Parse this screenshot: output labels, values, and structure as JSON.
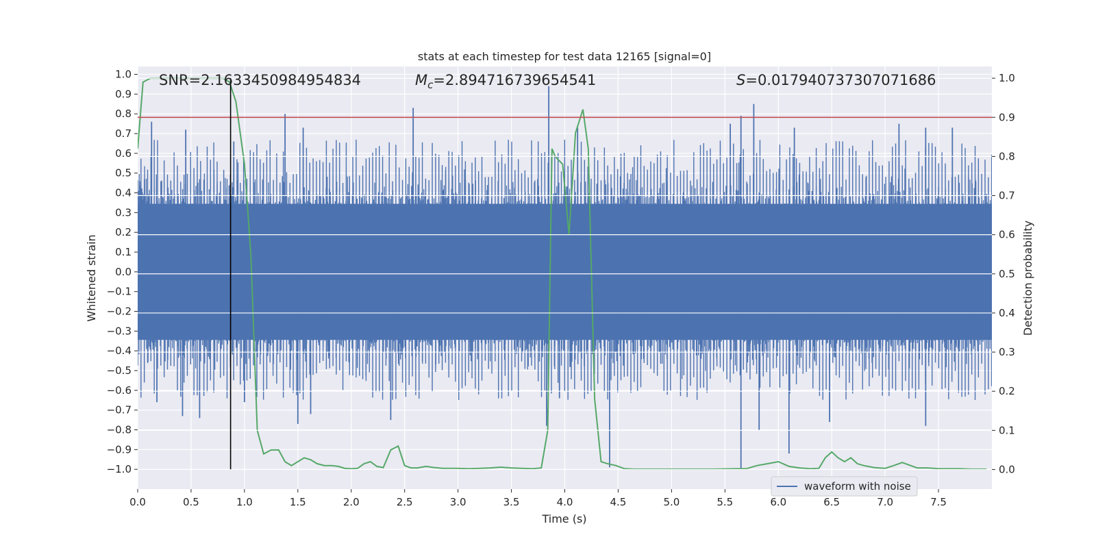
{
  "chart_data": {
    "type": "line",
    "title": "stats at each timestep for test data 12165 [signal=0]",
    "xlabel": "Time (s)",
    "ylabel": "Whitened strain",
    "y2label": "Detection probability",
    "xlim": [
      0.0,
      8.0
    ],
    "ylim": [
      -1.1,
      1.04
    ],
    "y2lim": [
      -0.05,
      1.03
    ],
    "x_ticks": [
      "0.0",
      "0.5",
      "1.0",
      "1.5",
      "2.0",
      "2.5",
      "3.0",
      "3.5",
      "4.0",
      "4.5",
      "5.0",
      "5.5",
      "6.0",
      "6.5",
      "7.0",
      "7.5"
    ],
    "y_ticks": [
      "1.0",
      "0.9",
      "0.8",
      "0.7",
      "0.6",
      "0.5",
      "0.4",
      "0.3",
      "0.2",
      "0.1",
      "0.0",
      "-0.1",
      "-0.2",
      "-0.3",
      "-0.4",
      "-0.5",
      "-0.6",
      "-0.7",
      "-0.8",
      "-0.9",
      "-1.0"
    ],
    "y2_ticks": [
      "1.0",
      "0.9",
      "0.8",
      "0.7",
      "0.6",
      "0.5",
      "0.4",
      "0.3",
      "0.2",
      "0.1",
      "0.0"
    ],
    "annotations": {
      "snr": "SNR=2.1633450984954834",
      "mc_symbol": "M",
      "mc_subscript": "c",
      "mc_value": "=2.894716739654541",
      "s_symbol": "S",
      "s_value": "=0.017940737307071686"
    },
    "threshold": {
      "value": 0.9,
      "axis": "right",
      "color": "#c44e52"
    },
    "vertical_marker": {
      "x": 0.87,
      "color": "#000000"
    },
    "legend": {
      "label": "waveform with noise",
      "location": "lower-right"
    },
    "series": [
      {
        "name": "waveform with noise",
        "axis": "left",
        "color": "#4c72b0",
        "description": "whitened strain noise, core band approx +/-0.42 with spikes",
        "core_envelope": 0.42,
        "spikes": [
          {
            "x": 0.13,
            "y": 0.76
          },
          {
            "x": 0.45,
            "y": 0.72
          },
          {
            "x": 0.9,
            "y": 0.66
          },
          {
            "x": 1.38,
            "y": 0.8
          },
          {
            "x": 1.55,
            "y": 0.73
          },
          {
            "x": 2.58,
            "y": 0.83
          },
          {
            "x": 3.85,
            "y": 0.94
          },
          {
            "x": 4.12,
            "y": 0.73
          },
          {
            "x": 5.55,
            "y": 0.75
          },
          {
            "x": 5.65,
            "y": 0.79
          },
          {
            "x": 5.77,
            "y": 0.85
          },
          {
            "x": 6.15,
            "y": 0.73
          },
          {
            "x": 7.13,
            "y": 0.75
          },
          {
            "x": 7.38,
            "y": 0.73
          },
          {
            "x": 7.63,
            "y": 0.73
          },
          {
            "x": 0.42,
            "y": -0.73
          },
          {
            "x": 0.58,
            "y": -0.74
          },
          {
            "x": 1.5,
            "y": -0.77
          },
          {
            "x": 1.62,
            "y": -0.72
          },
          {
            "x": 2.37,
            "y": -0.75
          },
          {
            "x": 3.83,
            "y": -0.78
          },
          {
            "x": 4.42,
            "y": -0.99
          },
          {
            "x": 5.65,
            "y": -1.0
          },
          {
            "x": 5.82,
            "y": -0.8
          },
          {
            "x": 6.1,
            "y": -0.92
          },
          {
            "x": 7.38,
            "y": -0.78
          },
          {
            "x": 6.48,
            "y": -0.76
          },
          {
            "x": 0.18,
            "y": -0.66
          },
          {
            "x": 1.0,
            "y": -0.66
          },
          {
            "x": 3.95,
            "y": -0.64
          }
        ]
      },
      {
        "name": "detection probability",
        "axis": "right",
        "color": "#55a868",
        "x": [
          0.0,
          0.05,
          0.12,
          0.2,
          0.3,
          0.4,
          0.5,
          0.6,
          0.7,
          0.8,
          0.86,
          0.92,
          1.0,
          1.06,
          1.12,
          1.18,
          1.25,
          1.32,
          1.38,
          1.44,
          1.5,
          1.56,
          1.62,
          1.68,
          1.75,
          1.82,
          1.88,
          1.94,
          2.0,
          2.06,
          2.12,
          2.18,
          2.24,
          2.3,
          2.37,
          2.44,
          2.5,
          2.56,
          2.62,
          2.7,
          2.78,
          2.86,
          2.94,
          3.0,
          3.1,
          3.2,
          3.3,
          3.4,
          3.5,
          3.6,
          3.7,
          3.78,
          3.84,
          3.88,
          3.91,
          3.98,
          4.04,
          4.1,
          4.17,
          4.22,
          4.28,
          4.34,
          4.4,
          4.48,
          4.56,
          4.65,
          4.8,
          5.0,
          5.2,
          5.4,
          5.6,
          5.7,
          5.8,
          5.9,
          6.0,
          6.1,
          6.2,
          6.3,
          6.38,
          6.44,
          6.5,
          6.56,
          6.62,
          6.68,
          6.74,
          6.8,
          6.9,
          7.0,
          7.08,
          7.16,
          7.24,
          7.3,
          7.4,
          7.5,
          7.6,
          7.7,
          7.8,
          7.95
        ],
        "values": [
          0.82,
          0.99,
          1.0,
          1.0,
          1.0,
          1.0,
          1.0,
          1.0,
          1.0,
          1.0,
          0.99,
          0.94,
          0.78,
          0.55,
          0.1,
          0.04,
          0.05,
          0.05,
          0.02,
          0.01,
          0.02,
          0.03,
          0.025,
          0.015,
          0.01,
          0.01,
          0.008,
          0.003,
          0.002,
          0.003,
          0.015,
          0.02,
          0.008,
          0.005,
          0.05,
          0.06,
          0.01,
          0.004,
          0.004,
          0.008,
          0.005,
          0.003,
          0.003,
          0.003,
          0.002,
          0.003,
          0.004,
          0.006,
          0.004,
          0.003,
          0.002,
          0.004,
          0.1,
          0.82,
          0.8,
          0.78,
          0.6,
          0.86,
          0.92,
          0.82,
          0.18,
          0.02,
          0.015,
          0.01,
          0.002,
          0.001,
          0.001,
          0.001,
          0.001,
          0.001,
          0.002,
          0.002,
          0.01,
          0.015,
          0.02,
          0.008,
          0.004,
          0.002,
          0.003,
          0.03,
          0.045,
          0.03,
          0.02,
          0.03,
          0.015,
          0.01,
          0.005,
          0.003,
          0.01,
          0.018,
          0.01,
          0.004,
          0.004,
          0.002,
          0.002,
          0.002,
          0.001,
          0.001
        ]
      }
    ]
  }
}
